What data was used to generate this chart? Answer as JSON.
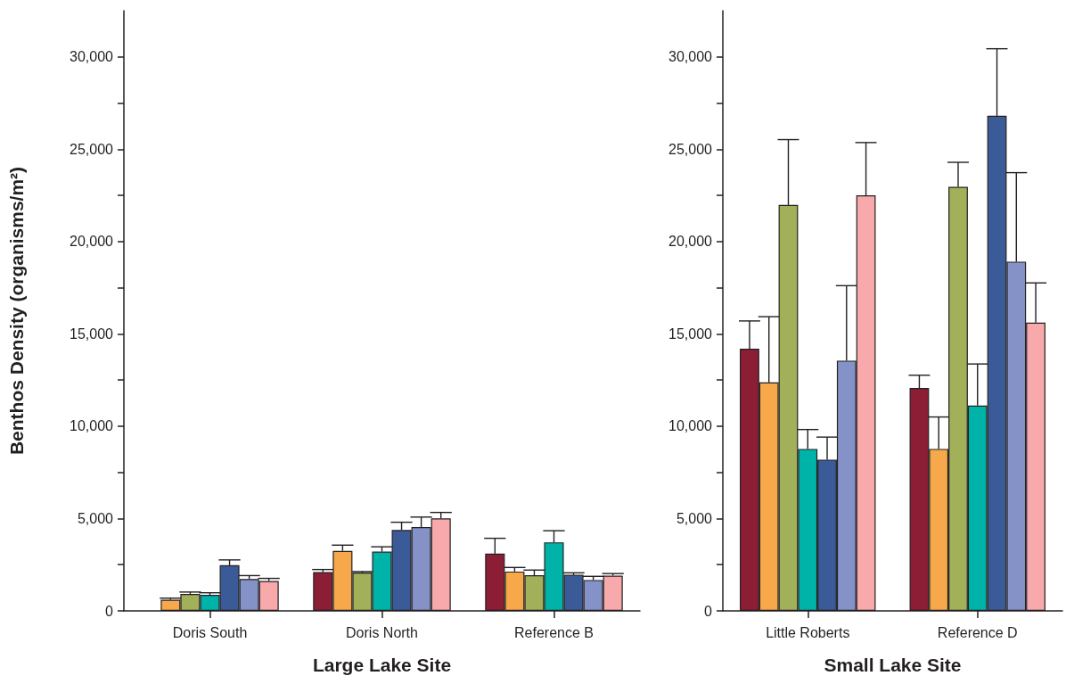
{
  "chart_data": [
    {
      "type": "bar",
      "xlabel": "Large Lake Site",
      "ylabel": "Benthos Density (organisms/m²)",
      "categories": [
        "Doris South",
        "Doris North",
        "Reference B"
      ],
      "ylim": [
        0,
        32500
      ],
      "yticks": [
        0,
        {
          "value": 2500,
          "label": null
        },
        {
          "value": 5000,
          "label": "5,000"
        },
        {
          "value": 7500,
          "label": null
        },
        {
          "value": 10000,
          "label": "10,000"
        },
        {
          "value": 12500,
          "label": null
        },
        {
          "value": 15000,
          "label": "15,000"
        },
        {
          "value": 17500,
          "label": null
        },
        {
          "value": 20000,
          "label": "20,000"
        },
        {
          "value": 22500,
          "label": null
        },
        {
          "value": 25000,
          "label": "25,000"
        },
        {
          "value": 27500,
          "label": null
        },
        {
          "value": 30000,
          "label": "30,000"
        }
      ],
      "grid": false,
      "series": [
        {
          "color": "#8b1e35",
          "values": [
            null,
            2100,
            3100
          ],
          "errors": [
            null,
            [
              2100,
              2240
            ],
            [
              3100,
              3930
            ]
          ]
        },
        {
          "color": "#f7a84a",
          "values": [
            600,
            3250,
            2130
          ],
          "errors": [
            [
              600,
              690
            ],
            [
              3250,
              3560
            ],
            [
              2130,
              2350
            ]
          ]
        },
        {
          "color": "#a3b05a",
          "values": [
            920,
            2080,
            1930
          ],
          "errors": [
            [
              920,
              1020
            ],
            [
              2080,
              2130
            ],
            [
              1930,
              2210
            ]
          ]
        },
        {
          "color": "#00b3a8",
          "values": [
            870,
            3210,
            3710
          ],
          "errors": [
            [
              870,
              980
            ],
            [
              3210,
              3470
            ],
            [
              3710,
              4340
            ]
          ]
        },
        {
          "color": "#3a5a98",
          "values": [
            2470,
            4380,
            1950
          ],
          "errors": [
            [
              2470,
              2760
            ],
            [
              4380,
              4800
            ],
            [
              1950,
              2060
            ]
          ]
        },
        {
          "color": "#8592c8",
          "values": [
            1730,
            4540,
            1670
          ],
          "errors": [
            [
              1730,
              1910
            ],
            [
              4540,
              5080
            ],
            [
              1670,
              1870
            ]
          ]
        },
        {
          "color": "#f7a9ab",
          "values": [
            1620,
            5010,
            1910
          ],
          "errors": [
            [
              1620,
              1760
            ],
            [
              5010,
              5330
            ],
            [
              1910,
              2020
            ]
          ]
        }
      ]
    },
    {
      "type": "bar",
      "xlabel": "Small Lake Site",
      "categories": [
        "Little Roberts",
        "Reference D"
      ],
      "ylim": [
        0,
        32500
      ],
      "yticks": [
        0,
        {
          "value": 2500,
          "label": null
        },
        {
          "value": 5000,
          "label": "5,000"
        },
        {
          "value": 7500,
          "label": null
        },
        {
          "value": 10000,
          "label": "10,000"
        },
        {
          "value": 12500,
          "label": null
        },
        {
          "value": 15000,
          "label": "15,000"
        },
        {
          "value": 17500,
          "label": null
        },
        {
          "value": 20000,
          "label": "20,000"
        },
        {
          "value": 22500,
          "label": null
        },
        {
          "value": 25000,
          "label": "25,000"
        },
        {
          "value": 27500,
          "label": null
        },
        {
          "value": 30000,
          "label": "30,000"
        }
      ],
      "grid": false,
      "series": [
        {
          "color": "#8b1e35",
          "values": [
            14200,
            12070
          ],
          "errors": [
            [
              14200,
              15700
            ],
            [
              12070,
              12760
            ]
          ]
        },
        {
          "color": "#f7a84a",
          "values": [
            12370,
            8770
          ],
          "errors": [
            [
              12370,
              15930
            ],
            [
              8770,
              10500
            ]
          ]
        },
        {
          "color": "#a3b05a",
          "values": [
            21980,
            22960
          ],
          "errors": [
            [
              21980,
              25520
            ],
            [
              22960,
              24290
            ]
          ]
        },
        {
          "color": "#00b3a8",
          "values": [
            8770,
            11120
          ],
          "errors": [
            [
              8770,
              9820
            ],
            [
              11120,
              13370
            ]
          ]
        },
        {
          "color": "#3a5a98",
          "values": [
            8190,
            26810
          ],
          "errors": [
            [
              8190,
              9410
            ],
            [
              26810,
              30440
            ]
          ]
        },
        {
          "color": "#8592c8",
          "values": [
            13550,
            18910
          ],
          "errors": [
            [
              13550,
              17610
            ],
            [
              18910,
              23730
            ]
          ]
        },
        {
          "color": "#f7a9ab",
          "values": [
            22500,
            15610
          ],
          "errors": [
            [
              22500,
              25360
            ],
            [
              15610,
              17760
            ]
          ]
        }
      ]
    }
  ]
}
